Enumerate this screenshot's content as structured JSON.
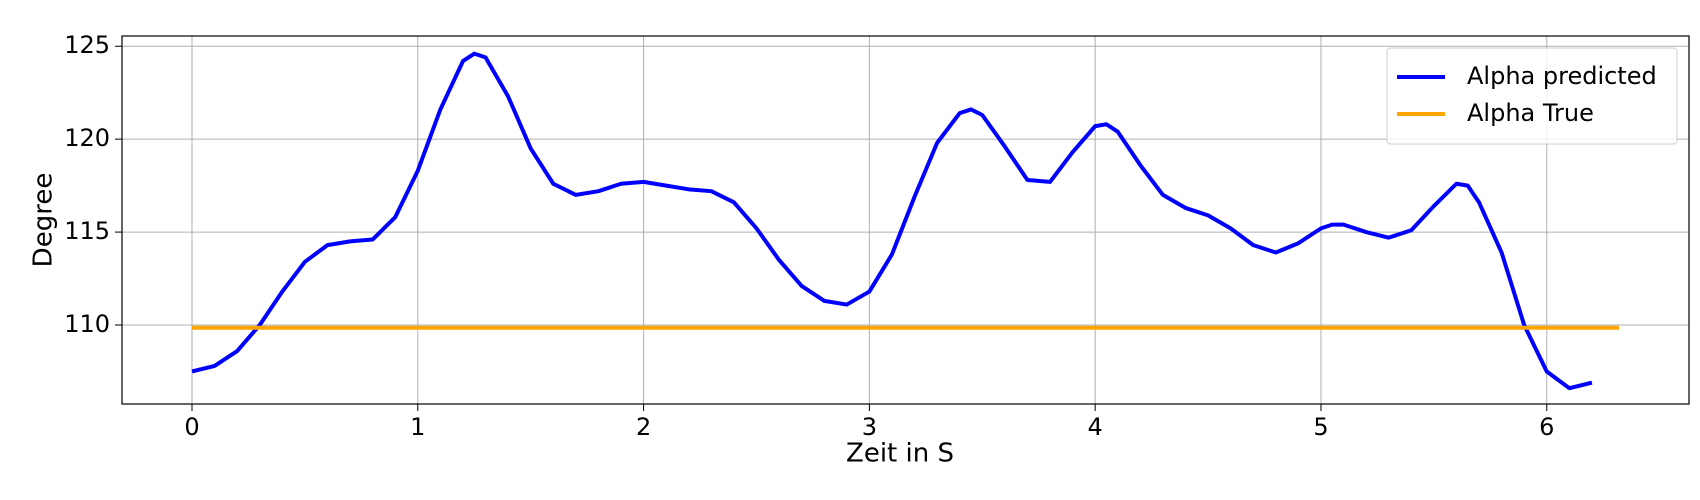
{
  "chart_data": {
    "type": "line",
    "xlabel": "Zeit in S",
    "ylabel": "Degree",
    "xlim": [
      -0.31,
      6.63
    ],
    "ylim": [
      105.75,
      125.55
    ],
    "xticks": [
      0,
      1,
      2,
      3,
      4,
      5,
      6
    ],
    "yticks": [
      110,
      115,
      120,
      125
    ],
    "grid": true,
    "legend": "upper right",
    "series": [
      {
        "name": "Alpha predicted",
        "color": "#0000ff",
        "x": [
          0,
          0.1,
          0.2,
          0.3,
          0.4,
          0.5,
          0.6,
          0.7,
          0.8,
          0.9,
          1.0,
          1.1,
          1.2,
          1.25,
          1.3,
          1.4,
          1.5,
          1.6,
          1.7,
          1.8,
          1.9,
          2.0,
          2.1,
          2.2,
          2.3,
          2.4,
          2.5,
          2.6,
          2.7,
          2.8,
          2.9,
          3.0,
          3.1,
          3.2,
          3.3,
          3.4,
          3.45,
          3.5,
          3.6,
          3.7,
          3.8,
          3.9,
          4.0,
          4.05,
          4.1,
          4.2,
          4.3,
          4.4,
          4.5,
          4.6,
          4.7,
          4.8,
          4.9,
          5.0,
          5.05,
          5.1,
          5.2,
          5.3,
          5.4,
          5.5,
          5.6,
          5.65,
          5.7,
          5.8,
          5.9,
          6.0,
          6.1,
          6.2
        ],
        "values": [
          107.5,
          107.8,
          108.6,
          110.0,
          111.8,
          113.4,
          114.3,
          114.5,
          114.6,
          115.8,
          118.3,
          121.6,
          124.2,
          124.6,
          124.4,
          122.3,
          119.5,
          117.6,
          117.0,
          117.2,
          117.6,
          117.7,
          117.5,
          117.3,
          117.2,
          116.6,
          115.2,
          113.5,
          112.1,
          111.3,
          111.1,
          111.8,
          113.8,
          116.9,
          119.8,
          121.4,
          121.6,
          121.3,
          119.6,
          117.8,
          117.7,
          119.3,
          120.7,
          120.8,
          120.4,
          118.6,
          117.0,
          116.3,
          115.9,
          115.2,
          114.3,
          113.9,
          114.4,
          115.2,
          115.4,
          115.4,
          115.0,
          114.7,
          115.1,
          116.4,
          117.6,
          117.5,
          116.6,
          113.9,
          110.0,
          107.5,
          106.6,
          106.9
        ]
      },
      {
        "name": "Alpha True",
        "color": "#ffa500",
        "x": [
          0,
          6.32
        ],
        "values": [
          109.85,
          109.85
        ]
      }
    ]
  }
}
